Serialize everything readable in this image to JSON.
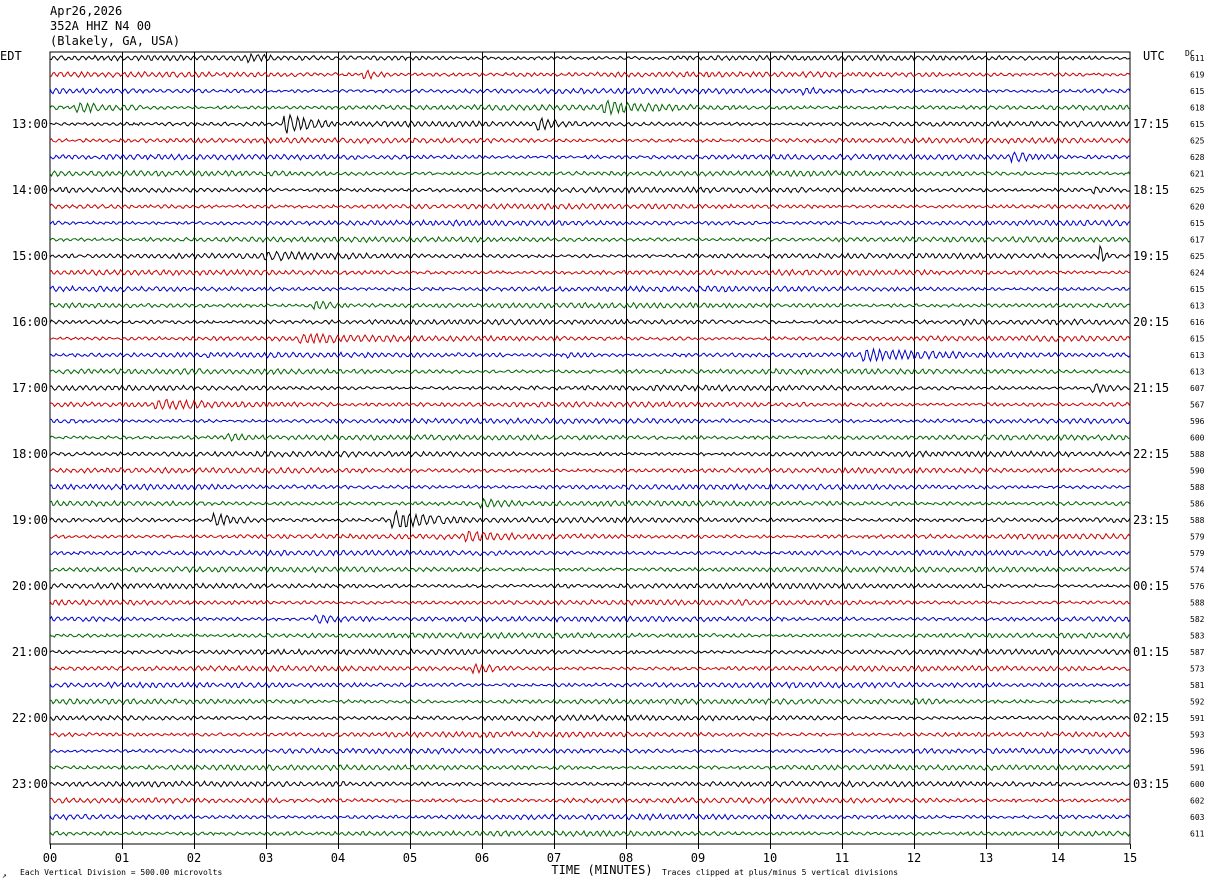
{
  "header": {
    "date": "Apr26,2026",
    "station": "352A HHZ N4 00",
    "location": "(Blakely, GA, USA)",
    "left_zone": "EDT",
    "right_zone": "UTC",
    "dc_label": "DC"
  },
  "footer": {
    "scale_note": "Each Vertical Division =  500.00 microvolts",
    "clip_note": "Traces clipped at plus/minus 5 vertical divisions",
    "corner_mark": "↗"
  },
  "colors": {
    "cycle": [
      "#000000",
      "#cc0000",
      "#0000cc",
      "#006600"
    ],
    "grid": "#000000"
  },
  "chart_data": {
    "type": "line",
    "subtype": "helicorder",
    "xlabel": "TIME (MINUTES)",
    "x_ticks": [
      "00",
      "01",
      "02",
      "03",
      "04",
      "05",
      "06",
      "07",
      "08",
      "09",
      "10",
      "11",
      "12",
      "13",
      "14",
      "15"
    ],
    "xlim": [
      0,
      15
    ],
    "minutes_per_line": 15,
    "edt_hour_labels": [
      "13:00",
      "14:00",
      "15:00",
      "16:00",
      "17:00",
      "18:00",
      "19:00",
      "20:00",
      "21:00",
      "22:00",
      "23:00"
    ],
    "utc_hour_labels": [
      "17:15",
      "18:15",
      "19:15",
      "20:15",
      "21:15",
      "22:15",
      "23:15",
      "00:15",
      "01:15",
      "02:15",
      "03:15"
    ],
    "dc_offsets": [
      611,
      619,
      615,
      618,
      615,
      625,
      628,
      621,
      625,
      620,
      615,
      617,
      625,
      624,
      615,
      613,
      616,
      615,
      613,
      613,
      607,
      567,
      596,
      600,
      588,
      590,
      588,
      586,
      588,
      579,
      579,
      574,
      576,
      588,
      582,
      583,
      587,
      573,
      581,
      592,
      591,
      593,
      596,
      591,
      600,
      602,
      603,
      611
    ],
    "events": [
      {
        "line": 0,
        "minute": 2.8,
        "amplitude": 0.6,
        "duration": 0.3
      },
      {
        "line": 1,
        "minute": 4.4,
        "amplitude": 1.0,
        "duration": 0.4
      },
      {
        "line": 2,
        "minute": 10.5,
        "amplitude": 0.6,
        "duration": 0.3
      },
      {
        "line": 3,
        "minute": 0.4,
        "amplitude": 1.2,
        "duration": 0.9
      },
      {
        "line": 3,
        "minute": 7.7,
        "amplitude": 1.4,
        "duration": 1.2
      },
      {
        "line": 4,
        "minute": 3.3,
        "amplitude": 2.6,
        "duration": 0.6
      },
      {
        "line": 4,
        "minute": 6.8,
        "amplitude": 1.5,
        "duration": 0.4
      },
      {
        "line": 6,
        "minute": 13.4,
        "amplitude": 1.0,
        "duration": 0.5
      },
      {
        "line": 8,
        "minute": 14.5,
        "amplitude": 0.8,
        "duration": 0.4
      },
      {
        "line": 12,
        "minute": 3.0,
        "amplitude": 0.7,
        "duration": 1.5
      },
      {
        "line": 12,
        "minute": 14.6,
        "amplitude": 3.0,
        "duration": 0.1
      },
      {
        "line": 15,
        "minute": 3.7,
        "amplitude": 1.1,
        "duration": 0.5
      },
      {
        "line": 16,
        "minute": 12.7,
        "amplitude": 0.6,
        "duration": 0.4
      },
      {
        "line": 17,
        "minute": 3.5,
        "amplitude": 1.0,
        "duration": 1.4
      },
      {
        "line": 18,
        "minute": 11.3,
        "amplitude": 1.4,
        "duration": 1.4
      },
      {
        "line": 18,
        "minute": 7.2,
        "amplitude": 0.6,
        "duration": 0.6
      },
      {
        "line": 20,
        "minute": 14.5,
        "amplitude": 1.2,
        "duration": 0.6
      },
      {
        "line": 21,
        "minute": 1.5,
        "amplitude": 1.0,
        "duration": 2.5
      },
      {
        "line": 23,
        "minute": 2.5,
        "amplitude": 0.8,
        "duration": 0.5
      },
      {
        "line": 27,
        "minute": 6.0,
        "amplitude": 1.0,
        "duration": 0.6
      },
      {
        "line": 28,
        "minute": 2.3,
        "amplitude": 1.8,
        "duration": 0.6
      },
      {
        "line": 28,
        "minute": 4.8,
        "amplitude": 2.2,
        "duration": 1.0
      },
      {
        "line": 29,
        "minute": 5.8,
        "amplitude": 1.2,
        "duration": 0.7
      },
      {
        "line": 34,
        "minute": 3.7,
        "amplitude": 1.0,
        "duration": 0.8
      },
      {
        "line": 37,
        "minute": 5.9,
        "amplitude": 1.2,
        "duration": 0.5
      },
      {
        "line": 39,
        "minute": 12.0,
        "amplitude": 0.6,
        "duration": 0.5
      }
    ]
  }
}
